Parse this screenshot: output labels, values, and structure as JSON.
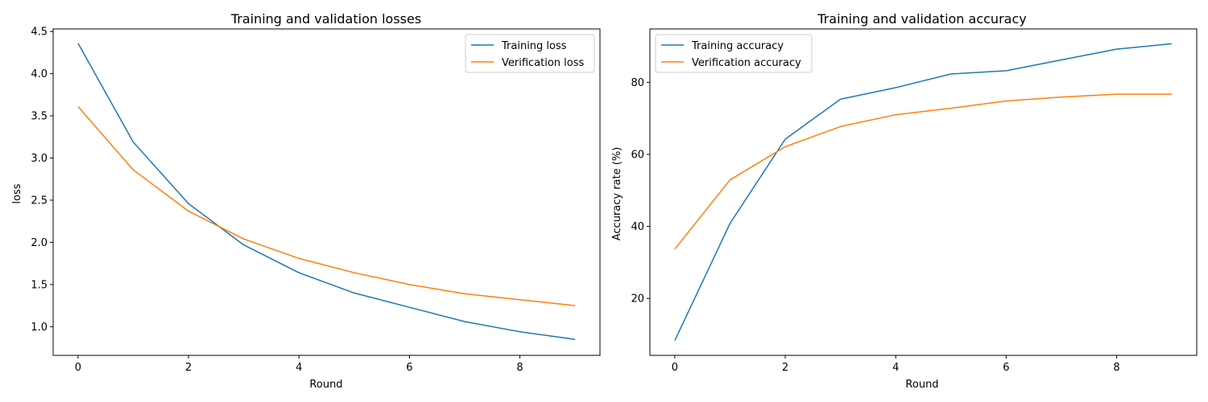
{
  "chart_data": [
    {
      "type": "line",
      "title": "Training and validation losses",
      "xlabel": "Round",
      "ylabel": "loss",
      "x": [
        0,
        1,
        2,
        3,
        4,
        5,
        6,
        7,
        8,
        9
      ],
      "xlim": [
        -0.45,
        9.45
      ],
      "ylim": [
        0.66,
        4.53
      ],
      "xticks": [
        0,
        2,
        4,
        6,
        8
      ],
      "yticks": [
        1.0,
        1.5,
        2.0,
        2.5,
        3.0,
        3.5,
        4.0,
        4.5
      ],
      "ytick_labels": [
        "1.0",
        "1.5",
        "2.0",
        "2.5",
        "3.0",
        "3.5",
        "4.0",
        "4.5"
      ],
      "grid": false,
      "legend_position": "top-right",
      "series": [
        {
          "name": "Training loss",
          "color": "#1f77b4",
          "values": [
            4.36,
            3.19,
            2.46,
            1.97,
            1.64,
            1.4,
            1.23,
            1.06,
            0.94,
            0.85
          ]
        },
        {
          "name": "Verification loss",
          "color": "#ff7f0e",
          "values": [
            3.61,
            2.86,
            2.37,
            2.04,
            1.81,
            1.64,
            1.5,
            1.39,
            1.32,
            1.25
          ]
        }
      ]
    },
    {
      "type": "line",
      "title": "Training and validation accuracy",
      "xlabel": "Round",
      "ylabel": "Accuracy rate (%)",
      "x": [
        0,
        1,
        2,
        3,
        4,
        5,
        6,
        7,
        8,
        9
      ],
      "xlim": [
        -0.45,
        9.45
      ],
      "ylim": [
        4.2,
        94.8
      ],
      "xticks": [
        0,
        2,
        4,
        6,
        8
      ],
      "yticks": [
        20,
        40,
        60,
        80
      ],
      "ytick_labels": [
        "20",
        "40",
        "60",
        "80"
      ],
      "grid": false,
      "legend_position": "top-left",
      "series": [
        {
          "name": "Training accuracy",
          "color": "#1f77b4",
          "values": [
            8.3,
            40.8,
            64.2,
            75.3,
            78.5,
            82.3,
            83.2,
            86.2,
            89.2,
            90.7
          ]
        },
        {
          "name": "Verification accuracy",
          "color": "#ff7f0e",
          "values": [
            33.7,
            52.9,
            62.1,
            67.7,
            71.0,
            72.8,
            74.8,
            75.9,
            76.7,
            76.7
          ]
        }
      ]
    }
  ]
}
